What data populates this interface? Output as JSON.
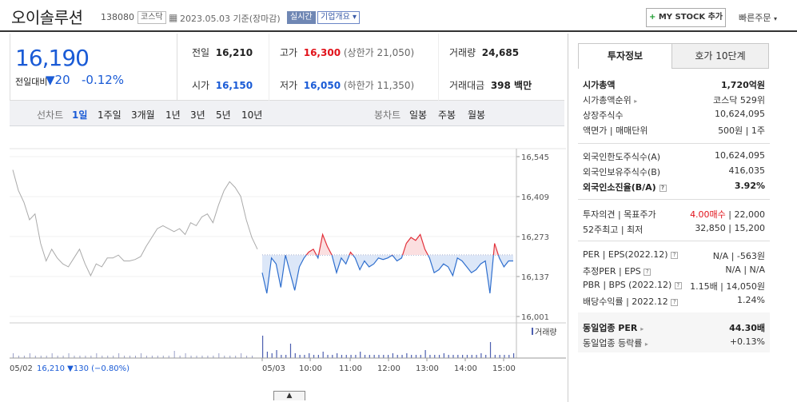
{
  "header": {
    "company_name": "오이솔루션",
    "code": "138080",
    "market": "코스닥",
    "date": "2023.05.03",
    "basis": "기준(장마감)",
    "realtime": "실시간",
    "overview": "기업개요",
    "mystock": "MY STOCK 추가",
    "quick_order": "빠른주문"
  },
  "price": {
    "current": "16,190",
    "change_label": "전일대비",
    "change_value": "20",
    "change_pct": "-0.12%"
  },
  "quote": {
    "prev_label": "전일",
    "prev": "16,210",
    "high_label": "고가",
    "high": "16,300",
    "upper_label": "(상한가",
    "upper": "21,050)",
    "volume_label": "거래량",
    "volume": "24,685",
    "open_label": "시가",
    "open": "16,150",
    "low_label": "저가",
    "low": "16,050",
    "lower_label": "(하한가",
    "lower": "11,350)",
    "amount_label": "거래대금",
    "amount": "398 백만"
  },
  "tabs": {
    "line_label": "선차트",
    "periods": [
      "1일",
      "1주일",
      "3개월",
      "1년",
      "3년",
      "5년",
      "10년"
    ],
    "candle_label": "봉차트",
    "candles": [
      "일봉",
      "주봉",
      "월봉"
    ]
  },
  "chart_data": {
    "type": "line",
    "yticks": [
      "16,545",
      "16,409",
      "16,273",
      "16,137",
      "16,001"
    ],
    "ylim": [
      16001,
      16545
    ],
    "xticks": [
      "05/02",
      "05/03",
      "10:00",
      "11:00",
      "12:00",
      "13:00",
      "14:00",
      "15:00"
    ],
    "reference_price": 16210,
    "legend_volume": "거래량",
    "footer_prev": "05/02  16,210 ▼130 (−0.80%)",
    "series": [
      {
        "name": "05/02",
        "values": [
          16500,
          16430,
          16390,
          16330,
          16350,
          16250,
          16190,
          16230,
          16200,
          16180,
          16170,
          16200,
          16230,
          16180,
          16140,
          16180,
          16170,
          16200,
          16200,
          16210,
          16190,
          16190,
          16195,
          16205,
          16240,
          16270,
          16300,
          16310,
          16300,
          16290,
          16300,
          16280,
          16320,
          16310,
          16340,
          16350,
          16320,
          16380,
          16430,
          16460,
          16440,
          16410,
          16330,
          16270,
          16230
        ]
      },
      {
        "name": "05/03",
        "values": [
          16150,
          16080,
          16200,
          16180,
          16100,
          16210,
          16150,
          16090,
          16170,
          16200,
          16220,
          16230,
          16200,
          16280,
          16240,
          16210,
          16150,
          16200,
          16180,
          16220,
          16200,
          16160,
          16190,
          16170,
          16180,
          16200,
          16195,
          16200,
          16210,
          16190,
          16200,
          16250,
          16270,
          16260,
          16280,
          16230,
          16200,
          16150,
          16160,
          16180,
          16170,
          16140,
          16200,
          16190,
          16170,
          16150,
          16160,
          16180,
          16190,
          16080,
          16250,
          16200,
          16170,
          16190,
          16190
        ]
      }
    ]
  },
  "right_panel": {
    "tab_info": "투자정보",
    "tab_hoga": "호가 10단계",
    "market_cap_label": "시가총액",
    "market_cap": "1,720억원",
    "rank_label": "시가총액순위",
    "rank": "코스닥 529위",
    "shares_label": "상장주식수",
    "shares": "10,624,095",
    "par_label": "액면가 | 매매단위",
    "par": "500원 | 1주",
    "foreign_limit_label": "외국인한도주식수(A)",
    "foreign_limit": "10,624,095",
    "foreign_hold_label": "외국인보유주식수(B)",
    "foreign_hold": "416,035",
    "foreign_ratio_label": "외국인소진율(B/A)",
    "foreign_ratio": "3.92%",
    "opinion_label": "투자의견 | 목표주가",
    "opinion": "4.00매수",
    "target": "22,000",
    "w52_label": "52주최고 | 최저",
    "w52": "32,850 | 15,200",
    "per_label": "PER | EPS(2022.12)",
    "per": "N/A | -563원",
    "est_label": "추정PER | EPS",
    "est": "N/A | N/A",
    "pbr_label": "PBR | BPS (2022.12)",
    "pbr": "1.15배 | 14,050원",
    "div_label": "배당수익률 | 2022.12",
    "div": "1.24%",
    "peer_per_label": "동일업종 PER",
    "peer_per": "44.30배",
    "peer_chg_label": "동일업종 등락률",
    "peer_chg": "+0.13%"
  }
}
